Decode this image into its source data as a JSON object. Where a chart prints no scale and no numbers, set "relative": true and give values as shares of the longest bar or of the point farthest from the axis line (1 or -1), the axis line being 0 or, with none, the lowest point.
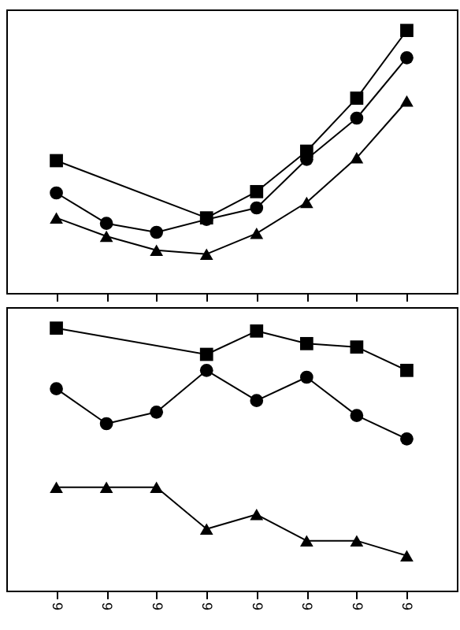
{
  "chart_data": [
    {
      "type": "line",
      "relative": true,
      "tick_labels": false,
      "categories": [
        "9",
        "9",
        "9",
        "9",
        "9",
        "9",
        "9",
        "9"
      ],
      "series": [
        {
          "color": "#000000",
          "marker": "square",
          "values": [
            0.504,
            null,
            null,
            0.286,
            0.386,
            0.54,
            0.742,
            1
          ]
        },
        {
          "color": "#000000",
          "marker": "circle",
          "values": [
            0.381,
            0.265,
            0.231,
            0.28,
            0.324,
            0.509,
            0.666,
            0.896
          ]
        },
        {
          "color": "#000000",
          "marker": "triangle",
          "values": [
            0.286,
            0.216,
            0.163,
            0.148,
            0.227,
            0.345,
            0.515,
            0.731
          ]
        }
      ]
    },
    {
      "type": "line",
      "relative": true,
      "tick_labels": "x",
      "categories": [
        "9",
        "9",
        "9",
        "9",
        "9",
        "9",
        "9",
        "9"
      ],
      "series": [
        {
          "color": "#000000",
          "marker": "square",
          "values": [
            1,
            null,
            null,
            0.9,
            0.989,
            0.941,
            0.928,
            0.839
          ]
        },
        {
          "color": "#000000",
          "marker": "circle",
          "values": [
            0.769,
            0.636,
            0.68,
            0.839,
            0.724,
            0.813,
            0.667,
            0.578
          ]
        },
        {
          "color": "#000000",
          "marker": "triangle",
          "values": [
            0.394,
            0.394,
            0.394,
            0.235,
            0.29,
            0.19,
            0.19,
            0.133
          ]
        }
      ]
    }
  ]
}
